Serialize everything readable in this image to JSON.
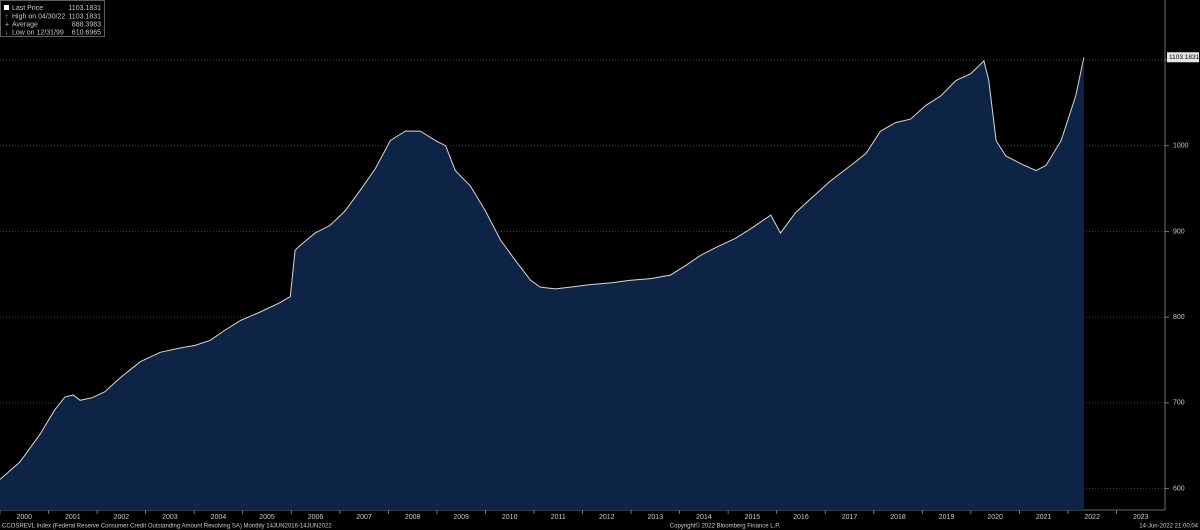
{
  "chart_data": {
    "type": "area",
    "series": [
      {
        "name": "Last Price",
        "color": "#0e2446",
        "line_color": "#d8d8d8",
        "x": [
          2000.0,
          2000.41,
          2000.82,
          2001.13,
          2001.34,
          2001.51,
          2001.65,
          2001.9,
          2002.16,
          2002.47,
          2002.89,
          2003.3,
          2003.71,
          2004.02,
          2004.33,
          2004.64,
          2004.95,
          2005.36,
          2005.77,
          2005.98,
          2006.08,
          2006.19,
          2006.49,
          2006.8,
          2007.11,
          2007.42,
          2007.73,
          2008.04,
          2008.35,
          2008.66,
          2008.97,
          2009.18,
          2009.38,
          2009.69,
          2010.0,
          2010.31,
          2010.62,
          2010.93,
          2011.13,
          2011.44,
          2011.75,
          2012.16,
          2012.58,
          2012.99,
          2013.4,
          2013.81,
          2014.12,
          2014.43,
          2014.74,
          2015.15,
          2015.46,
          2015.88,
          2016.08,
          2016.39,
          2016.7,
          2017.11,
          2017.53,
          2017.84,
          2018.14,
          2018.45,
          2018.76,
          2019.07,
          2019.38,
          2019.69,
          2020.0,
          2020.27,
          2020.37,
          2020.52,
          2020.72,
          2021.03,
          2021.34,
          2021.55,
          2021.86,
          2022.16,
          2022.33
        ],
        "values": [
          610.6965,
          631,
          663,
          692,
          707,
          709,
          703,
          706,
          713,
          729,
          748,
          759,
          764,
          767,
          773,
          785,
          796,
          806,
          817,
          824,
          878,
          884,
          898,
          907,
          924,
          948,
          973,
          1006,
          1017,
          1017,
          1006,
          1000,
          971,
          953,
          924,
          890,
          866,
          843,
          835,
          833,
          835,
          838,
          840,
          843,
          845,
          849,
          860,
          872,
          881,
          892,
          903,
          919,
          898,
          922,
          938,
          959,
          977,
          991,
          1017,
          1027,
          1031,
          1047,
          1058,
          1076,
          1084,
          1099,
          1076,
          1006,
          988,
          979,
          971,
          977,
          1006,
          1058,
          1103.1831
        ]
      }
    ],
    "legend_stats": [
      {
        "label": "High on 04/30/22",
        "value": 1103.1831
      },
      {
        "label": "Average",
        "value": 888.3983
      },
      {
        "label": "Low on 12/31/99",
        "value": 610.6965
      }
    ],
    "xlim": [
      2000,
      2024
    ],
    "xticks": [
      2000,
      2001,
      2002,
      2003,
      2004,
      2005,
      2006,
      2007,
      2008,
      2009,
      2010,
      2011,
      2012,
      2013,
      2014,
      2015,
      2016,
      2017,
      2018,
      2019,
      2020,
      2021,
      2022,
      2023
    ],
    "ylim": [
      575,
      1170
    ],
    "yticks": [
      600,
      700,
      800,
      900,
      1000,
      1100
    ],
    "grid": true,
    "footer_left": "CCOSREVL Index (Federal Reserve Consumer Credit Outstanding Amount Revolving SA)  Monthly 14JUN2016-14JUN2022",
    "footer_center": "Copyright© 2022 Bloomberg Finance L.P.",
    "footer_right": "14-Jun-2022 21:00:04"
  }
}
